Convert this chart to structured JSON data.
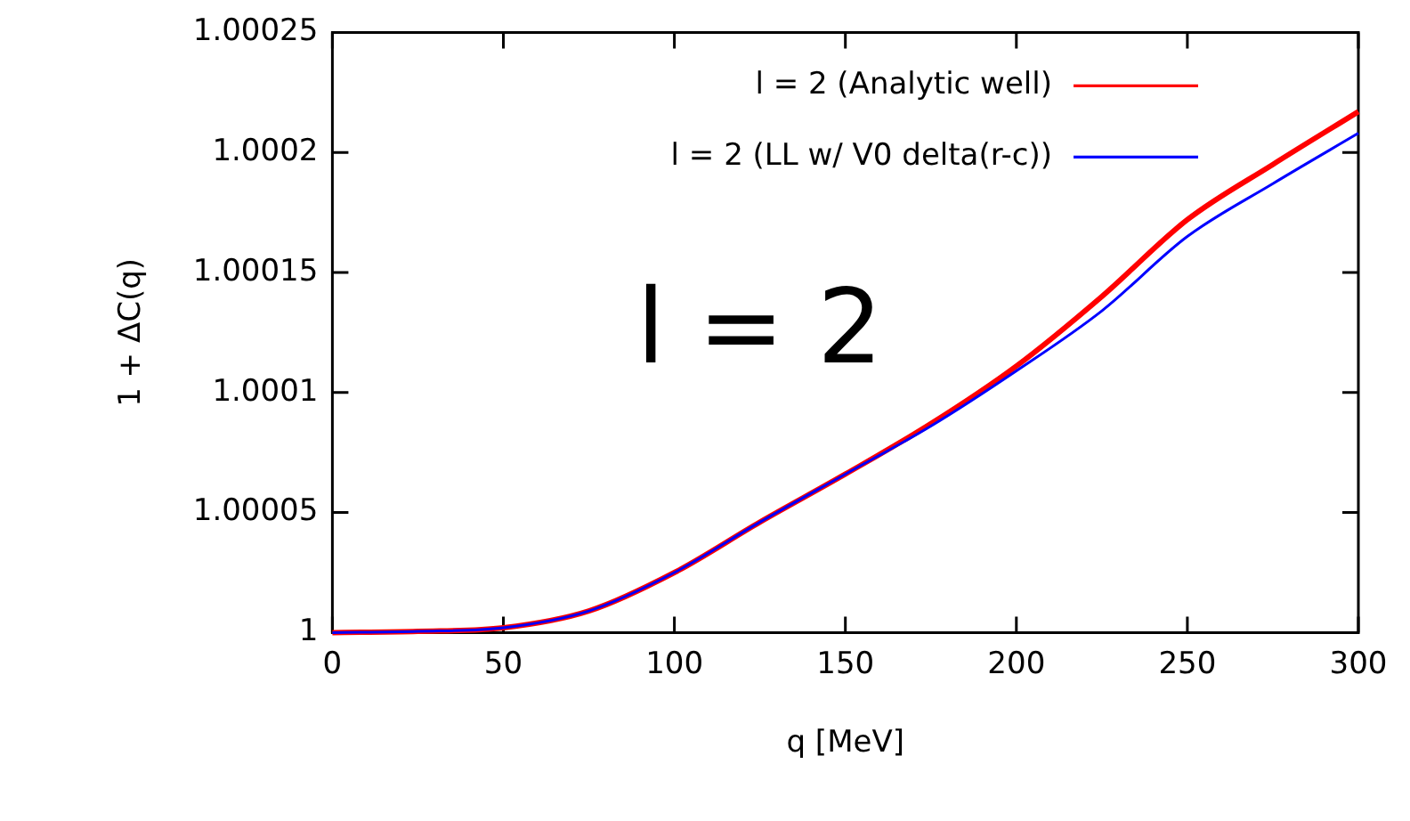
{
  "chart_data": {
    "type": "line",
    "xlabel": "q [MeV]",
    "ylabel": "1 + ΔC(q)",
    "x": [
      0,
      25,
      50,
      75,
      100,
      125,
      150,
      175,
      200,
      225,
      250,
      275,
      300
    ],
    "series": [
      {
        "name": "l = 2 (Analytic well)",
        "color": "#ff0000",
        "values": [
          1,
          1.0000005,
          1.000002,
          1.000009,
          1.000025,
          1.000046,
          1.000066,
          1.000087,
          1.000111,
          1.00014,
          1.000172,
          1.000195,
          1.000217
        ]
      },
      {
        "name": "l = 2 (LL w/ V0 delta(r-c))",
        "color": "#0000ff",
        "values": [
          1,
          1.0000005,
          1.000002,
          1.000009,
          1.000025,
          1.000046,
          1.000066,
          1.000086,
          1.000109,
          1.000134,
          1.000165,
          1.000187,
          1.000208
        ]
      }
    ],
    "xlim": [
      0,
      300
    ],
    "xticks": [
      0,
      50,
      100,
      150,
      200,
      250,
      300
    ],
    "ylim": [
      1,
      1.00025
    ],
    "yticks": [
      1,
      1.00005,
      1.0001,
      1.00015,
      1.0002,
      1.00025
    ],
    "grid": false,
    "legend": "top right",
    "marker": "none",
    "line_style": "solid",
    "annotations": [
      "l = 2"
    ]
  }
}
